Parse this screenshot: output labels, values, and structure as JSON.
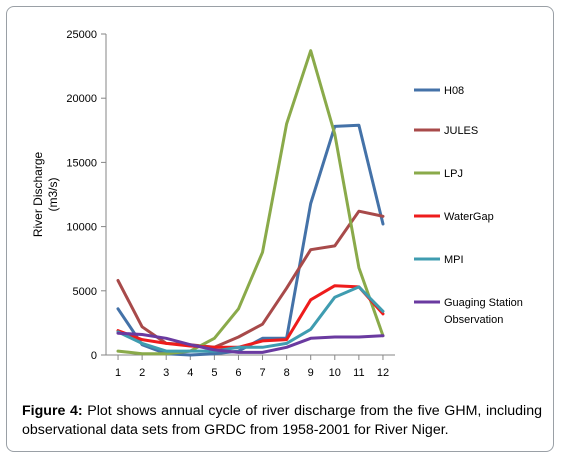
{
  "chart_data": {
    "type": "line",
    "title": "",
    "xlabel": "",
    "ylabel_line1": "River Discharge",
    "ylabel_line2": "(m3/s)",
    "x": [
      1,
      2,
      3,
      4,
      5,
      6,
      7,
      8,
      9,
      10,
      11,
      12
    ],
    "ylim": [
      0,
      25000
    ],
    "yticks": [
      0,
      5000,
      10000,
      15000,
      20000,
      25000
    ],
    "grid": false,
    "legend_position": "right",
    "series": [
      {
        "name": "H08",
        "color": "#4472a8",
        "values": [
          3600,
          800,
          100,
          0,
          100,
          300,
          1300,
          1300,
          11800,
          17800,
          17900,
          10200
        ]
      },
      {
        "name": "JULES",
        "color": "#a84a4a",
        "values": [
          5800,
          2200,
          900,
          800,
          600,
          1400,
          2400,
          5200,
          8200,
          8500,
          11200,
          10800
        ]
      },
      {
        "name": "LPJ",
        "color": "#8aaa4a",
        "values": [
          300,
          100,
          100,
          300,
          1300,
          3600,
          8000,
          18000,
          23700,
          17200,
          6800,
          1500
        ]
      },
      {
        "name": "WaterGap",
        "color": "#ee1c1c",
        "values": [
          1900,
          1200,
          900,
          700,
          600,
          600,
          1100,
          1200,
          4300,
          5400,
          5300,
          3200
        ]
      },
      {
        "name": "MPI",
        "color": "#3f9cb0",
        "values": [
          1800,
          900,
          300,
          300,
          300,
          600,
          600,
          900,
          2000,
          4500,
          5300,
          3400
        ]
      },
      {
        "name": "Guaging Station Observation",
        "color": "#6a3aa0",
        "values": [
          1700,
          1600,
          1300,
          800,
          400,
          200,
          200,
          600,
          1300,
          1400,
          1400,
          1500
        ]
      }
    ]
  },
  "caption": {
    "label": "Figure 4:",
    "text": " Plot shows annual cycle of river discharge from the five GHM, including observational data sets from GRDC from 1958-2001 for River Niger."
  }
}
